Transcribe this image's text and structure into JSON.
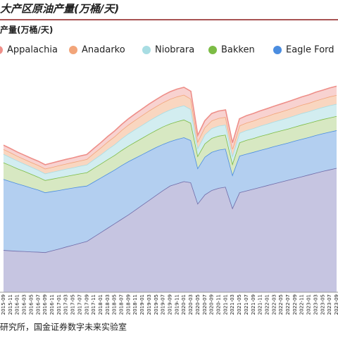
{
  "chart_data": {
    "type": "stacked_area",
    "title": "大产区原油产量(万桶/天)",
    "ylabel": "产量(万桶/天)",
    "source": "研究所，国金证券数字未来实验室",
    "categories": [
      "2015-09",
      "2015-11",
      "2016-01",
      "2016-03",
      "2016-05",
      "2016-07",
      "2016-09",
      "2016-11",
      "2017-01",
      "2017-03",
      "2017-05",
      "2017-07",
      "2017-09",
      "2017-11",
      "2018-01",
      "2018-03",
      "2018-05",
      "2018-07",
      "2018-09",
      "2018-11",
      "2019-01",
      "2019-03",
      "2019-05",
      "2019-07",
      "2019-09",
      "2019-11",
      "2020-01",
      "2020-03",
      "2020-05",
      "2020-07",
      "2020-09",
      "2020-11",
      "2021-01",
      "2021-03",
      "2021-05",
      "2021-07",
      "2021-09",
      "2021-11",
      "2022-01",
      "2022-03",
      "2022-05",
      "2022-07",
      "2022-09",
      "2022-11",
      "2023-01",
      "2023-03",
      "2023-05",
      "2023-07",
      "2023-09"
    ],
    "ylim": [
      0,
      1000
    ],
    "legend": "top",
    "series": [
      {
        "color": "#c6c5e1",
        "edge": "#6f6ba8",
        "values": [
          190,
          188,
          186,
          185,
          183,
          182,
          180,
          188,
          196,
          205,
          213,
          222,
          230,
          250,
          270,
          290,
          310,
          330,
          350,
          372,
          394,
          416,
          438,
          460,
          480,
          490,
          500,
          495,
          400,
          440,
          460,
          470,
          475,
          380,
          450,
          458,
          466,
          474,
          482,
          490,
          498,
          506,
          514,
          522,
          530,
          538,
          546,
          553,
          560
        ]
      },
      {
        "name": "Eagle Ford",
        "color": "#b3cff0",
        "edge": "#4b8de0",
        "values": [
          320,
          312,
          304,
          296,
          288,
          280,
          270,
          267,
          264,
          261,
          258,
          254,
          250,
          248,
          246,
          244,
          242,
          242,
          240,
          234,
          228,
          222,
          216,
          208,
          200,
          200,
          198,
          190,
          160,
          170,
          172,
          172,
          172,
          150,
          165,
          166,
          166,
          167,
          167,
          168,
          168,
          168,
          169,
          169,
          169,
          170,
          170,
          170,
          170
        ]
      },
      {
        "name": "Bakken",
        "color": "#d7e8c2",
        "edge": "#7cbc45",
        "values": [
          75,
          72,
          68,
          65,
          62,
          58,
          55,
          56,
          57,
          57,
          58,
          59,
          60,
          62,
          63,
          65,
          66,
          68,
          70,
          72,
          74,
          76,
          77,
          79,
          80,
          80,
          80,
          78,
          55,
          60,
          63,
          63,
          63,
          50,
          60,
          62,
          62,
          63,
          63,
          63,
          63,
          63,
          63,
          64,
          64,
          64,
          64,
          64,
          64
        ]
      },
      {
        "name": "Niobrara",
        "color": "#d2edf0",
        "edge": "#a8dde3",
        "values": [
          38,
          36,
          35,
          33,
          32,
          31,
          30,
          31,
          32,
          33,
          33,
          34,
          35,
          38,
          41,
          45,
          48,
          52,
          55,
          57,
          58,
          60,
          61,
          62,
          63,
          64,
          64,
          62,
          35,
          40,
          44,
          45,
          45,
          36,
          43,
          44,
          45,
          46,
          47,
          48,
          49,
          50,
          51,
          52,
          52,
          53,
          54,
          55,
          55
        ]
      },
      {
        "name": "Anadarko",
        "color": "#f9d6c0",
        "edge": "#f2a57a",
        "values": [
          22,
          22,
          21,
          21,
          21,
          22,
          22,
          22,
          23,
          23,
          24,
          24,
          25,
          28,
          31,
          34,
          36,
          38,
          40,
          42,
          44,
          45,
          46,
          47,
          48,
          48,
          48,
          47,
          30,
          33,
          35,
          35,
          35,
          30,
          33,
          34,
          34,
          35,
          35,
          36,
          36,
          37,
          37,
          38,
          38,
          39,
          39,
          40,
          40
        ]
      },
      {
        "name": "Appalachia",
        "color": "#f8d2d0",
        "edge": "#ee8f89",
        "values": [
          18,
          18,
          18,
          18,
          18,
          18,
          18,
          19,
          19,
          20,
          20,
          21,
          21,
          22,
          23,
          24,
          25,
          26,
          27,
          28,
          29,
          30,
          31,
          32,
          33,
          34,
          34,
          34,
          28,
          30,
          32,
          32,
          32,
          28,
          31,
          32,
          33,
          33,
          34,
          34,
          35,
          35,
          36,
          36,
          37,
          38,
          38,
          39,
          40
        ]
      }
    ]
  }
}
